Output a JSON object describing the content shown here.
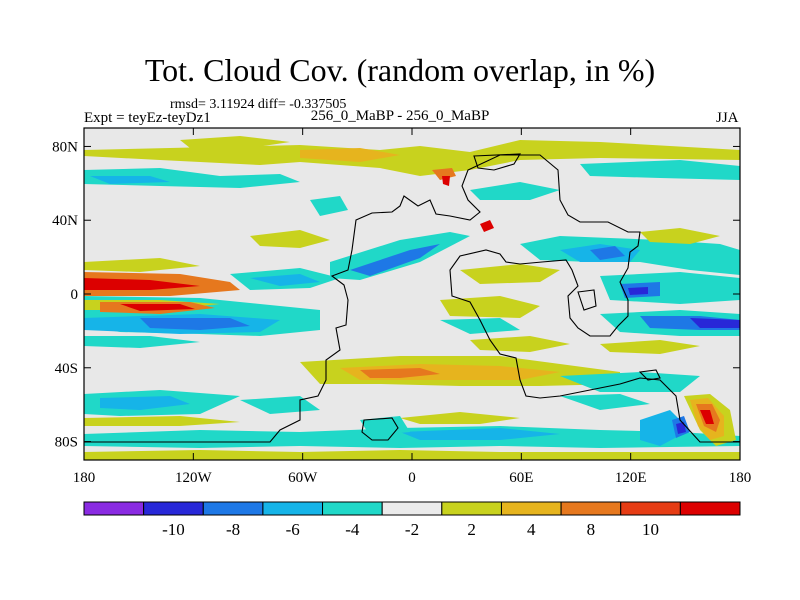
{
  "title": "Tot. Cloud Cov. (random overlap, in %)",
  "stats": "rmsd= 3.11924 diff= -0.337505",
  "experiment": "Expt = teyEz-teyDz1",
  "period": "256_0_MaBP - 256_0_MaBP",
  "season": "JJA",
  "map": {
    "projection": "cylindrical equidistant",
    "lon_range": [
      -180,
      180
    ],
    "lat_range": [
      -90,
      90
    ],
    "x_ticks": [
      {
        "lon": -180,
        "label": "180"
      },
      {
        "lon": -120,
        "label": "120W"
      },
      {
        "lon": -60,
        "label": "60W"
      },
      {
        "lon": 0,
        "label": "0"
      },
      {
        "lon": 60,
        "label": "60E"
      },
      {
        "lon": 120,
        "label": "120E"
      },
      {
        "lon": 180,
        "label": "180"
      }
    ],
    "y_ticks": [
      {
        "lat": 80,
        "label": "80N"
      },
      {
        "lat": 40,
        "label": "40N"
      },
      {
        "lat": 0,
        "label": "0"
      },
      {
        "lat": -40,
        "label": "40S"
      },
      {
        "lat": -80,
        "label": "80S"
      }
    ],
    "background_color": "#e8e8e8",
    "outline_color": "#000000"
  },
  "colorbar": {
    "colors": [
      "#8a2be2",
      "#2828d8",
      "#1e78e6",
      "#16b4e8",
      "#20d8c8",
      "#ebebeb",
      "#c8d21e",
      "#e6b41e",
      "#e6781e",
      "#e63c14",
      "#dc0000"
    ],
    "labels": [
      "-10",
      "-8",
      "-6",
      "-4",
      "-2",
      "2",
      "4",
      "8",
      "10"
    ]
  },
  "chart_data": {
    "type": "heatmap",
    "title": "Tot. Cloud Cov. (random overlap, in %)",
    "variable": "Total cloud cover difference",
    "units": "%",
    "levels": [
      -10,
      -8,
      -6,
      -4,
      -2,
      2,
      4,
      8,
      10
    ],
    "xlim": [
      -180,
      180
    ],
    "ylim": [
      -90,
      90
    ],
    "rmsd": 3.11924,
    "diff": -0.337505,
    "regions": [
      {
        "lon": [
          -180,
          -130
        ],
        "lat": [
          12,
          2
        ],
        "value": 10
      },
      {
        "lon": [
          -155,
          -115
        ],
        "lat": [
          -4,
          -12
        ],
        "value": 10
      },
      {
        "lon": [
          -180,
          -100
        ],
        "lat": [
          -15,
          -30
        ],
        "value": -6
      },
      {
        "lon": [
          122,
          140
        ],
        "lat": [
          5,
          -3
        ],
        "value": -8
      },
      {
        "lon": [
          160,
          180
        ],
        "lat": [
          -5,
          -15
        ],
        "value": -8
      },
      {
        "lon": [
          88,
          110
        ],
        "lat": [
          20,
          10
        ],
        "value": -6
      },
      {
        "lon": [
          -40,
          -30
        ],
        "lat": [
          20,
          8
        ],
        "value": -8
      },
      {
        "lon": [
          -10,
          40
        ],
        "lat": [
          -30,
          -40
        ],
        "value": 4
      },
      {
        "lon": [
          25,
          55
        ],
        "lat": [
          -38,
          -48
        ],
        "value": 4
      },
      {
        "lon": [
          150,
          170
        ],
        "lat": [
          -45,
          -65
        ],
        "value": 8
      },
      {
        "lon": [
          148,
          160
        ],
        "lat": [
          -75,
          -85
        ],
        "value": -8
      },
      {
        "lon": [
          28,
          32
        ],
        "lat": [
          66,
          60
        ],
        "value": 10
      },
      {
        "lon": [
          40,
          45
        ],
        "lat": [
          36,
          33
        ],
        "value": 10
      },
      {
        "lon": [
          -60,
          40
        ],
        "lat": [
          84,
          72
        ],
        "value": 4
      },
      {
        "lon": [
          -180,
          -60
        ],
        "lat": [
          72,
          60
        ],
        "value": -2
      },
      {
        "lon": [
          -180,
          -100
        ],
        "lat": [
          -55,
          -70
        ],
        "value": -2
      }
    ]
  }
}
